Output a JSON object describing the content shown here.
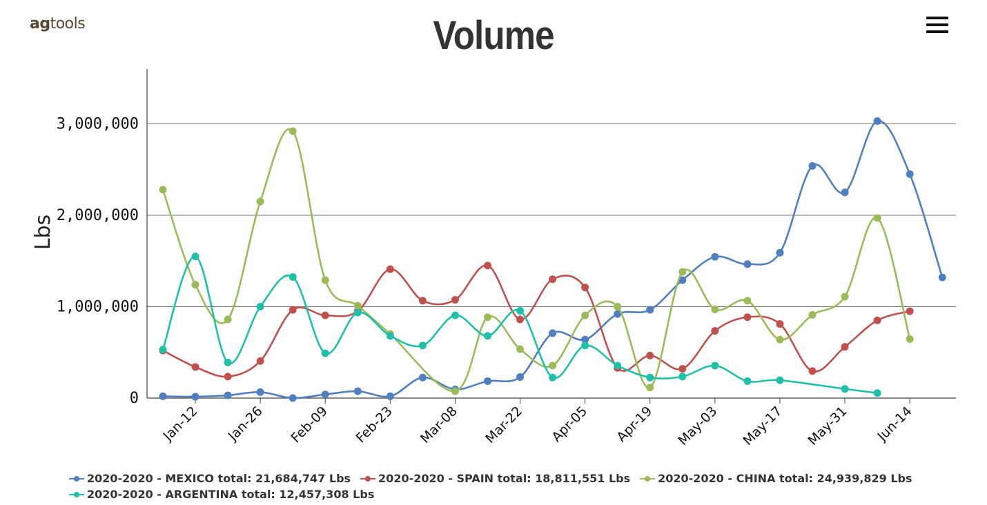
{
  "header": {
    "logo_ag": "ag",
    "logo_tools": "tools",
    "title": "Volume"
  },
  "menu_icon": "hamburger-menu-icon",
  "chart_data": {
    "type": "line",
    "title": "Volume",
    "xlabel": "",
    "ylabel": "Lbs",
    "ylim": [
      0,
      3600000
    ],
    "yticks": [
      0,
      1000000,
      2000000,
      3000000
    ],
    "ytick_labels": [
      "0",
      "1,000,000",
      "2,000,000",
      "3,000,000"
    ],
    "x": [
      "Jan-05",
      "Jan-12",
      "Jan-19",
      "Jan-26",
      "Feb-02",
      "Feb-09",
      "Feb-16",
      "Feb-23",
      "Mar-01",
      "Mar-08",
      "Mar-15",
      "Mar-22",
      "Mar-29",
      "Apr-05",
      "Apr-12",
      "Apr-19",
      "Apr-26",
      "May-03",
      "May-10",
      "May-17",
      "May-24",
      "May-31",
      "Jun-07",
      "Jun-14",
      "Jun-21"
    ],
    "xtick_labels": [
      "Jan-12",
      "Jan-26",
      "Feb-09",
      "Feb-23",
      "Mar-08",
      "Mar-22",
      "Apr-05",
      "Apr-19",
      "May-03",
      "May-17",
      "May-31",
      "Jun-14"
    ],
    "xtick_indices": [
      1,
      3,
      5,
      7,
      9,
      11,
      13,
      15,
      17,
      19,
      21,
      23
    ],
    "grid": true,
    "legend_position": "bottom",
    "series": [
      {
        "name": "2020-2020 - MEXICO",
        "total_label": "2020-2020 - MEXICO total: 21,684,747 Lbs",
        "color": "#4f7fbf",
        "values": [
          20000,
          15000,
          30000,
          65000,
          0,
          40000,
          75000,
          20000,
          225000,
          95000,
          185000,
          230000,
          710000,
          640000,
          920000,
          965000,
          1290000,
          1545000,
          1465000,
          1590000,
          2540000,
          2250000,
          3030000,
          2450000,
          1320000
        ]
      },
      {
        "name": "2020-2020 - SPAIN",
        "total_label": "2020-2020 - SPAIN total: 18,811,551 Lbs",
        "color": "#c0504d",
        "values": [
          520000,
          340000,
          235000,
          405000,
          965000,
          905000,
          950000,
          1410000,
          1065000,
          1075000,
          1450000,
          860000,
          1300000,
          1210000,
          330000,
          465000,
          320000,
          735000,
          885000,
          810000,
          295000,
          560000,
          850000,
          950000,
          null
        ]
      },
      {
        "name": "2020-2020 - CHINA",
        "total_label": "2020-2020 - CHINA total: 24,939,829 Lbs",
        "color": "#9bbb59",
        "values": [
          2280000,
          1240000,
          860000,
          2150000,
          2920000,
          1290000,
          1010000,
          700000,
          null,
          75000,
          885000,
          535000,
          355000,
          905000,
          1000000,
          115000,
          1380000,
          970000,
          1065000,
          640000,
          910000,
          1110000,
          1970000,
          645000,
          null
        ]
      },
      {
        "name": "2020-2020 - ARGENTINA",
        "total_label": "2020-2020 - ARGENTINA total: 12,457,308 Lbs",
        "color": "#1fbfa8",
        "values": [
          530000,
          1550000,
          390000,
          1000000,
          1325000,
          490000,
          935000,
          680000,
          575000,
          905000,
          680000,
          955000,
          225000,
          575000,
          355000,
          225000,
          235000,
          355000,
          185000,
          195000,
          null,
          100000,
          55000,
          null,
          null
        ]
      }
    ]
  }
}
